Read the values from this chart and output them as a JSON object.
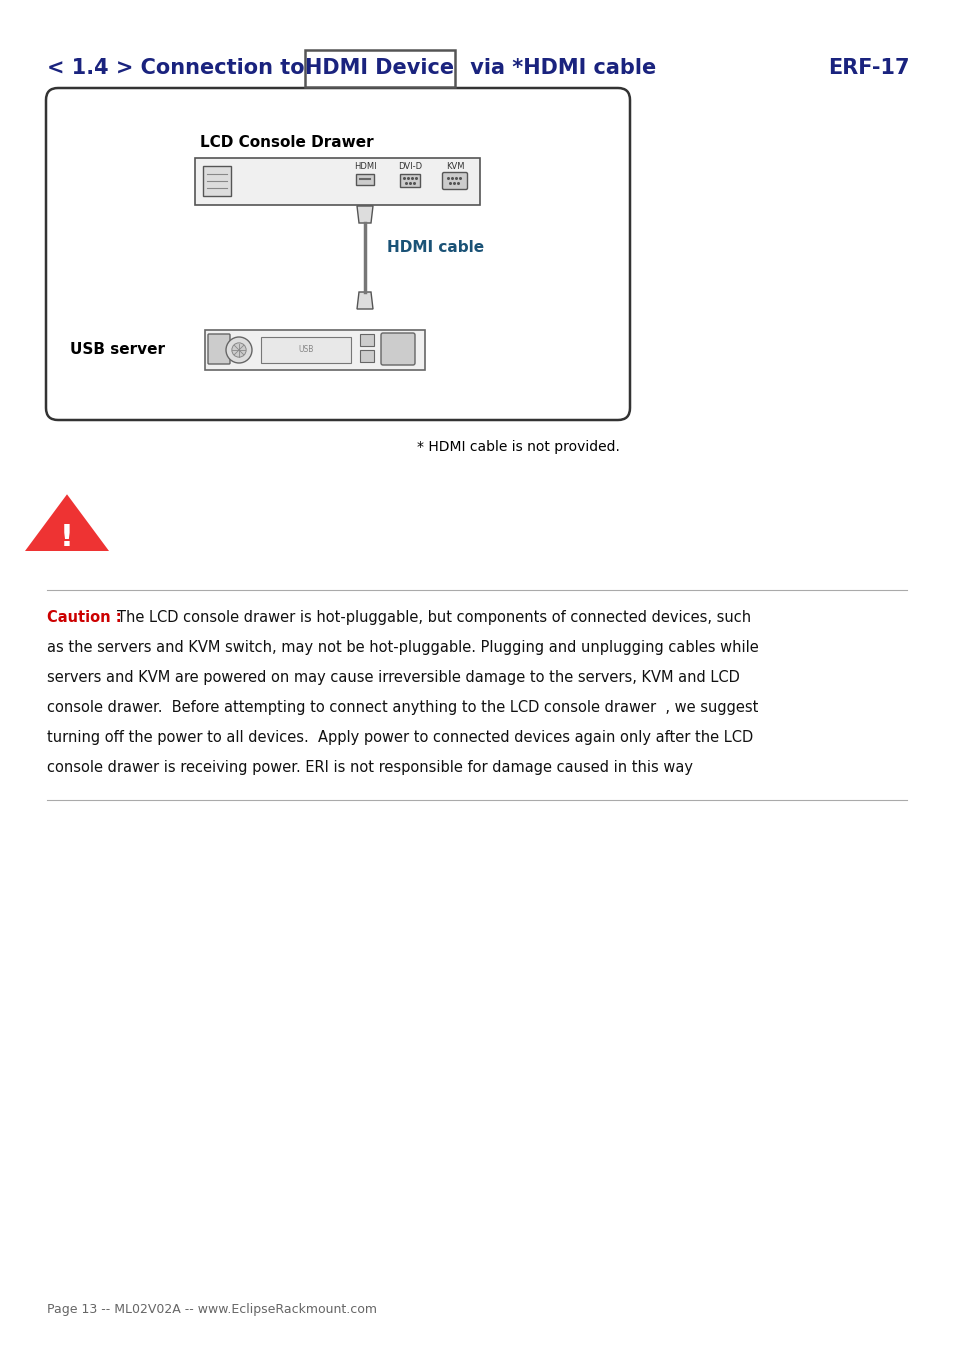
{
  "title_part1": "< 1.4 > Connection to ",
  "title_boxed": "HDMI Device",
  "title_part2": " via *HDMI cable",
  "title_right": "ERF-17",
  "title_color": "#1a237e",
  "title_fontsize": 15,
  "lcd_label": "LCD Console Drawer",
  "hdmi_cable_label": "HDMI cable",
  "hdmi_cable_color": "#1a5276",
  "usb_server_label": "USB server",
  "footnote": "* HDMI cable is not provided.",
  "caution_label": "Caution : ",
  "caution_color": "#cc0000",
  "caution_lines": [
    "The LCD console drawer is hot-pluggable, but components of connected devices, such",
    "as the servers and KVM switch, may not be hot-pluggable. Plugging and unplugging cables while",
    "servers and KVM are powered on may cause irreversible damage to the servers, KVM and LCD",
    "console drawer.  Before attempting to connect anything to the LCD console drawer  , we suggest",
    "turning off the power to all devices.  Apply power to connected devices again only after the LCD",
    "console drawer is receiving power. ERI is not responsible for damage caused in this way"
  ],
  "footer_text": "Page 13 -- ML02V02A -- www.EclipseRackmount.com",
  "bg_color": "#ffffff",
  "box_border_color": "#555555",
  "text_color": "#111111"
}
